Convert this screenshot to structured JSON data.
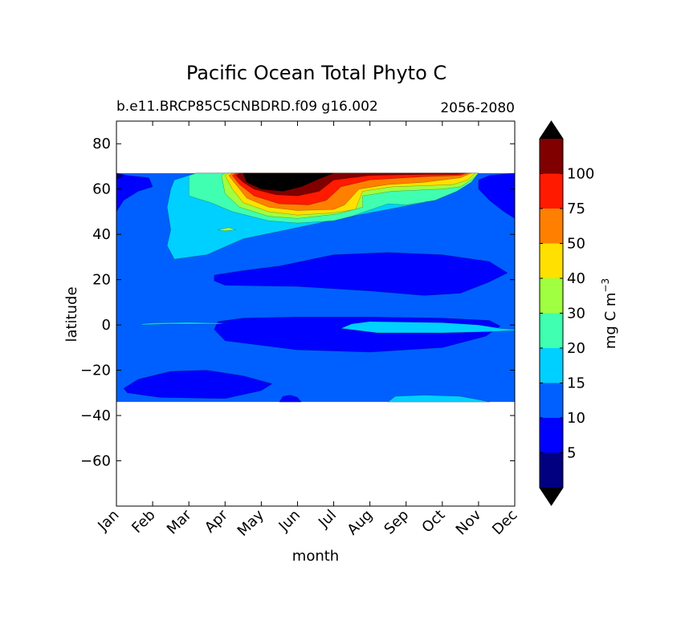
{
  "chart_data": {
    "type": "contour",
    "title": "Pacific Ocean Total Phyto C",
    "subtitle_left": "b.e11.BRCP85C5CNBDRD.f09 g16.002",
    "subtitle_right": "2056-2080",
    "xlabel": "month",
    "ylabel": "latitude",
    "x_ticks": [
      "Jan",
      "Feb",
      "Mar",
      "Apr",
      "May",
      "Jun",
      "Jul",
      "Aug",
      "Sep",
      "Oct",
      "Nov",
      "Dec"
    ],
    "y_ticks": [
      80,
      60,
      40,
      20,
      0,
      -20,
      -40,
      -60
    ],
    "y_tick_labels": [
      "80",
      "60",
      "40",
      "20",
      "0",
      "−20",
      "−40",
      "−60"
    ],
    "xlim": [
      0,
      11
    ],
    "ylim": [
      -80,
      90
    ],
    "data_lat_range": [
      -34,
      67
    ],
    "colorbar": {
      "label": "mg C m",
      "label_exponent": "−3",
      "levels": [
        0,
        5,
        10,
        15,
        20,
        30,
        40,
        50,
        75,
        100,
        125
      ],
      "tick_values": [
        5,
        10,
        15,
        20,
        30,
        40,
        50,
        75,
        100
      ],
      "tick_labels": [
        "5",
        "10",
        "15",
        "20",
        "30",
        "40",
        "50",
        "75",
        "100"
      ],
      "colors": [
        "#000080",
        "#0000ff",
        "#0060ff",
        "#00d0ff",
        "#40ffb0",
        "#a0ff40",
        "#ffe000",
        "#ff8000",
        "#ff1a00",
        "#800000"
      ],
      "under_color": "#000000",
      "over_color": "#000000",
      "extend": "both"
    },
    "background_level_color": "#0060ff",
    "regions": [
      {
        "name": "eastern-low-band",
        "color": "#0000ff",
        "points": [
          [
            2.7,
            -2
          ],
          [
            3.0,
            -7
          ],
          [
            5,
            -11
          ],
          [
            7,
            -12
          ],
          [
            9,
            -10
          ],
          [
            10.2,
            -5
          ],
          [
            10.6,
            -0.5
          ],
          [
            10.3,
            2
          ],
          [
            9,
            3
          ],
          [
            7,
            3.5
          ],
          [
            5,
            3.5
          ],
          [
            3.5,
            3
          ],
          [
            2.8,
            1.5
          ]
        ]
      },
      {
        "name": "north-subtropical-low",
        "color": "#0000ff",
        "points": [
          [
            2.7,
            19.5
          ],
          [
            3.0,
            17.5
          ],
          [
            5,
            17
          ],
          [
            7,
            15
          ],
          [
            8.5,
            13
          ],
          [
            9.5,
            14
          ],
          [
            10.3,
            19
          ],
          [
            10.8,
            23
          ],
          [
            10.3,
            28
          ],
          [
            9,
            31
          ],
          [
            7.5,
            32
          ],
          [
            6,
            31
          ],
          [
            4.5,
            26
          ],
          [
            3.5,
            24
          ],
          [
            2.7,
            22
          ]
        ]
      },
      {
        "name": "south-subtropical-low",
        "color": "#0000ff",
        "points": [
          [
            0.3,
            -30
          ],
          [
            1.2,
            -32
          ],
          [
            3.0,
            -32.5
          ],
          [
            4.0,
            -29
          ],
          [
            4.3,
            -26
          ],
          [
            3.5,
            -22.5
          ],
          [
            2.5,
            -20
          ],
          [
            1.5,
            -20.5
          ],
          [
            0.6,
            -24
          ],
          [
            0.2,
            -28
          ]
        ]
      },
      {
        "name": "equatorial-jan-jun-high",
        "color": "#00d0ff",
        "points": [
          [
            0.7,
            0
          ],
          [
            1.5,
            0.4
          ],
          [
            2.8,
            0.4
          ],
          [
            3.0,
            0.8
          ],
          [
            2.0,
            1.2
          ],
          [
            1.0,
            0.9
          ],
          [
            0.7,
            0.5
          ]
        ]
      },
      {
        "name": "equatorial-aug-dec-high",
        "color": "#00d0ff",
        "points": [
          [
            6.2,
            -1.5
          ],
          [
            7.2,
            -3.5
          ],
          [
            9.0,
            -3.5
          ],
          [
            10.3,
            -3.0
          ],
          [
            11,
            -2.5
          ],
          [
            11,
            -2
          ],
          [
            10.6,
            -1.5
          ],
          [
            10.0,
            0
          ],
          [
            9.0,
            1.0
          ],
          [
            7.0,
            1.5
          ],
          [
            6.5,
            0.5
          ]
        ]
      },
      {
        "name": "southern-high-patch",
        "color": "#00d0ff",
        "points": [
          [
            7.5,
            -34
          ],
          [
            7.7,
            -31.5
          ],
          [
            8.5,
            -31
          ],
          [
            9.5,
            -31.5
          ],
          [
            10.0,
            -33
          ],
          [
            10.3,
            -34
          ]
        ]
      },
      {
        "name": "southern-low-dot",
        "color": "#0000ff",
        "points": [
          [
            4.5,
            -34
          ],
          [
            4.6,
            -31.5
          ],
          [
            4.8,
            -31
          ],
          [
            5.0,
            -32
          ],
          [
            5.1,
            -34
          ]
        ]
      },
      {
        "name": "jan-north-low",
        "color": "#0000ff",
        "points": [
          [
            0,
            50
          ],
          [
            0.2,
            55
          ],
          [
            0.6,
            59
          ],
          [
            1.0,
            61
          ],
          [
            0.9,
            65
          ],
          [
            0.3,
            66
          ],
          [
            0,
            67
          ]
        ]
      },
      {
        "name": "dec-north-low",
        "color": "#0000ff",
        "points": [
          [
            11,
            47
          ],
          [
            10.7,
            50
          ],
          [
            10.3,
            55
          ],
          [
            10.0,
            60
          ],
          [
            10.0,
            64
          ],
          [
            10.3,
            66
          ],
          [
            11,
            67
          ]
        ]
      },
      {
        "name": "jan-north-darkest",
        "color": "#000080",
        "points": [
          [
            0,
            64
          ],
          [
            0.2,
            66
          ],
          [
            0,
            67
          ]
        ]
      },
      {
        "name": "northern-high-envelope",
        "color": "#00d0ff",
        "points": [
          [
            1.6,
            64
          ],
          [
            2.2,
            67
          ],
          [
            10.0,
            67
          ],
          [
            9.8,
            63
          ],
          [
            9.5,
            60
          ],
          [
            9.0,
            57
          ],
          [
            8.5,
            54
          ],
          [
            7.5,
            51
          ],
          [
            6.5,
            48
          ],
          [
            5.0,
            43
          ],
          [
            3.5,
            38
          ],
          [
            2.5,
            31
          ],
          [
            1.6,
            29
          ],
          [
            1.4,
            35
          ],
          [
            1.5,
            42
          ],
          [
            1.4,
            52
          ],
          [
            1.5,
            60
          ]
        ]
      },
      {
        "name": "northern-30-band",
        "color": "#40ffb0",
        "points": [
          [
            2.0,
            66
          ],
          [
            2.2,
            67
          ],
          [
            10.0,
            67
          ],
          [
            9.8,
            63
          ],
          [
            9.4,
            59
          ],
          [
            8.8,
            55
          ],
          [
            8.0,
            53
          ],
          [
            7.5,
            53.5
          ],
          [
            6.5,
            48
          ],
          [
            6.0,
            46
          ],
          [
            5.0,
            45
          ],
          [
            4.2,
            46
          ],
          [
            3.2,
            50
          ],
          [
            2.6,
            54
          ],
          [
            2.0,
            57
          ]
        ]
      },
      {
        "name": "northern-40-band",
        "color": "#a0ff40",
        "points": [
          [
            2.9,
            66
          ],
          [
            3.0,
            67
          ],
          [
            10.0,
            67
          ],
          [
            9.8,
            64
          ],
          [
            9.5,
            61
          ],
          [
            9.0,
            60
          ],
          [
            7.6,
            59
          ],
          [
            6.8,
            57
          ],
          [
            6.8,
            52
          ],
          [
            6.1,
            49
          ],
          [
            5.0,
            47
          ],
          [
            4.2,
            48
          ],
          [
            3.4,
            52
          ],
          [
            3.0,
            58
          ]
        ]
      },
      {
        "name": "apr-small-green-patch",
        "color": "#a0ff40",
        "points": [
          [
            2.8,
            42
          ],
          [
            3.1,
            43
          ],
          [
            3.3,
            42
          ],
          [
            3.0,
            41.5
          ]
        ]
      },
      {
        "name": "northern-50-band",
        "color": "#ffe000",
        "points": [
          [
            3.0,
            66
          ],
          [
            3.1,
            67
          ],
          [
            9.9,
            67
          ],
          [
            9.7,
            64
          ],
          [
            9.3,
            62
          ],
          [
            8.5,
            61.5
          ],
          [
            7.6,
            61
          ],
          [
            6.8,
            59
          ],
          [
            6.6,
            51
          ],
          [
            6.0,
            49.5
          ],
          [
            5.0,
            48.5
          ],
          [
            4.2,
            50
          ],
          [
            3.5,
            54
          ],
          [
            3.2,
            60
          ]
        ]
      },
      {
        "name": "northern-75-band",
        "color": "#ff8000",
        "points": [
          [
            3.1,
            66
          ],
          [
            3.2,
            67
          ],
          [
            9.8,
            67
          ],
          [
            9.5,
            65
          ],
          [
            8.5,
            63
          ],
          [
            7.5,
            62
          ],
          [
            6.7,
            60
          ],
          [
            6.3,
            53
          ],
          [
            6.0,
            51
          ],
          [
            5.0,
            50.5
          ],
          [
            4.2,
            52
          ],
          [
            3.6,
            56
          ],
          [
            3.3,
            62
          ]
        ]
      },
      {
        "name": "northern-100-band",
        "color": "#ff1a00",
        "points": [
          [
            3.2,
            66
          ],
          [
            3.3,
            67
          ],
          [
            9.7,
            67
          ],
          [
            9.5,
            66
          ],
          [
            8.5,
            65.5
          ],
          [
            7.0,
            64
          ],
          [
            6.2,
            61
          ],
          [
            5.8,
            55
          ],
          [
            5.3,
            53
          ],
          [
            4.5,
            53.5
          ],
          [
            3.8,
            57
          ],
          [
            3.4,
            62
          ]
        ]
      },
      {
        "name": "northern-125-band",
        "color": "#800000",
        "points": [
          [
            3.3,
            66
          ],
          [
            3.4,
            67
          ],
          [
            9.6,
            67
          ],
          [
            9.4,
            66.5
          ],
          [
            8.5,
            66.5
          ],
          [
            7.0,
            66
          ],
          [
            6.0,
            64
          ],
          [
            5.6,
            59
          ],
          [
            5.0,
            57
          ],
          [
            4.4,
            57.5
          ],
          [
            3.8,
            60
          ],
          [
            3.5,
            63
          ]
        ]
      },
      {
        "name": "northern-max-core",
        "color": "#000000",
        "points": [
          [
            3.5,
            67
          ],
          [
            6.0,
            67
          ],
          [
            5.6,
            64.5
          ],
          [
            5.1,
            61
          ],
          [
            4.6,
            59
          ],
          [
            4.0,
            60
          ],
          [
            3.6,
            63
          ]
        ]
      }
    ]
  }
}
